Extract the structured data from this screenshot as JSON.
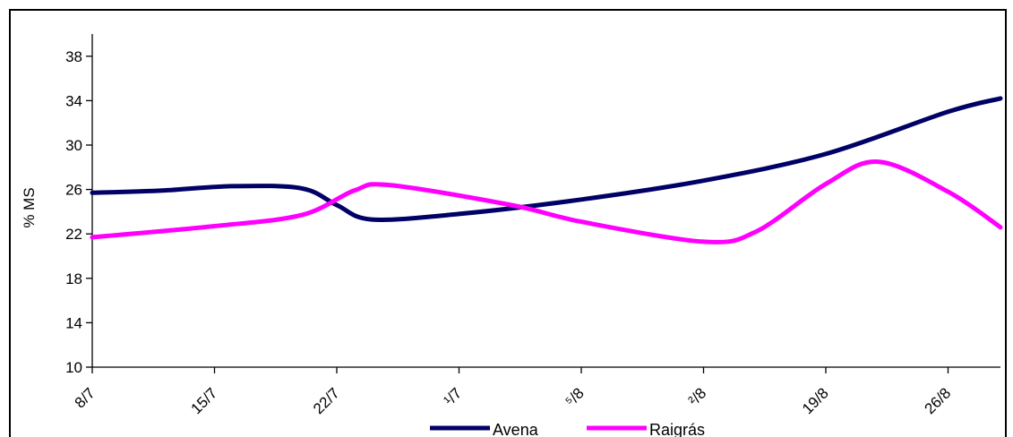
{
  "chart_data": {
    "type": "line",
    "title": "",
    "xlabel": "",
    "ylabel": "% MS",
    "ylim": [
      10,
      40
    ],
    "yticks": [
      10,
      14,
      18,
      22,
      26,
      30,
      34,
      38
    ],
    "ytick_labels": [
      "10",
      "14",
      "18",
      "22",
      "26",
      "30",
      "34",
      "38"
    ],
    "xlim": [
      "8/7",
      "29/8"
    ],
    "xticks": [
      "8/7",
      "15/7",
      "22/7",
      "29/7",
      "5/8",
      "12/8",
      "19/8",
      "26/8"
    ],
    "xtick_labels": [
      "8/7",
      "15/7",
      "22/7",
      "¹/7",
      "⁵/8",
      "²/8",
      "19/8",
      "26/8"
    ],
    "grid": false,
    "legend_position": "bottom",
    "series": [
      {
        "name": "Avena",
        "color": "#000066",
        "points": [
          {
            "x": "8/7",
            "y": 25.7
          },
          {
            "x": "12/7",
            "y": 25.9
          },
          {
            "x": "16/7",
            "y": 26.3
          },
          {
            "x": "20/7",
            "y": 26.1
          },
          {
            "x": "22/7",
            "y": 24.6
          },
          {
            "x": "24/7",
            "y": 23.3
          },
          {
            "x": "29/7",
            "y": 23.8
          },
          {
            "x": "5/8",
            "y": 25.1
          },
          {
            "x": "12/8",
            "y": 26.8
          },
          {
            "x": "19/8",
            "y": 29.2
          },
          {
            "x": "26/8",
            "y": 33.0
          },
          {
            "x": "29/8",
            "y": 34.2
          }
        ]
      },
      {
        "name": "Raigrás",
        "color": "#ff00ff",
        "points": [
          {
            "x": "8/7",
            "y": 21.7
          },
          {
            "x": "15/7",
            "y": 22.7
          },
          {
            "x": "20/7",
            "y": 23.7
          },
          {
            "x": "23/7",
            "y": 25.9
          },
          {
            "x": "25/7",
            "y": 26.4
          },
          {
            "x": "1/8",
            "y": 24.6
          },
          {
            "x": "5/8",
            "y": 23.1
          },
          {
            "x": "12/8",
            "y": 21.3
          },
          {
            "x": "15/8",
            "y": 22.2
          },
          {
            "x": "19/8",
            "y": 26.5
          },
          {
            "x": "22/8",
            "y": 28.5
          },
          {
            "x": "26/8",
            "y": 25.8
          },
          {
            "x": "29/8",
            "y": 22.6
          }
        ]
      }
    ]
  }
}
